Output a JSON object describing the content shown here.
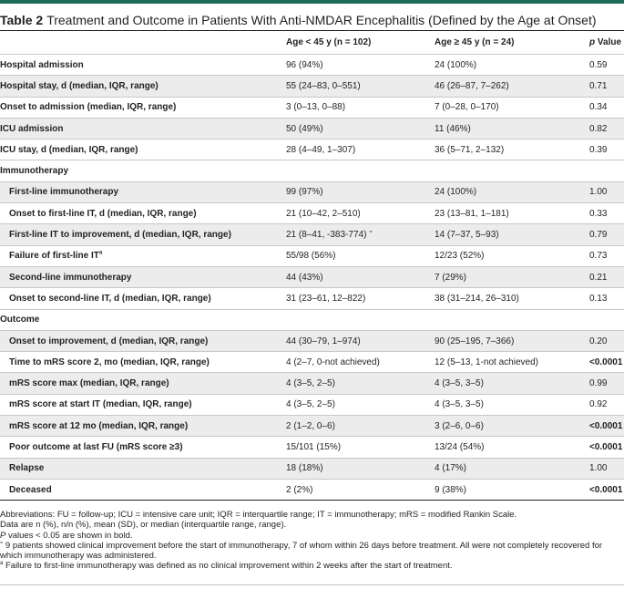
{
  "title": {
    "label": "Table 2",
    "text": "Treatment and Outcome in Patients With Anti-NMDAR Encephalitis (Defined by the Age at Onset)"
  },
  "header": {
    "col1": "",
    "col2": "Age < 45 y (n = 102)",
    "col3": "Age ≥ 45 y (n = 24)",
    "col4_italic": "p",
    "col4_rest": " Value"
  },
  "rows": [
    {
      "label": "Hospital admission",
      "a": "96 (94%)",
      "b": "24 (100%)",
      "p": "0.59"
    },
    {
      "label": "Hospital stay, d (median, IQR, range)",
      "a": "55 (24–83, 0–551)",
      "b": "46 (26–87, 7–262)",
      "p": "0.71"
    },
    {
      "label": "Onset to admission (median, IQR, range)",
      "a": "3 (0–13, 0–88)",
      "b": "7 (0–28, 0–170)",
      "p": "0.34"
    },
    {
      "label": "ICU admission",
      "a": "50 (49%)",
      "b": "11 (46%)",
      "p": "0.82"
    },
    {
      "label": "ICU stay, d (median, IQR, range)",
      "a": "28 (4–49, 1–307)",
      "b": "36 (5–71, 2–132)",
      "p": "0.39"
    },
    {
      "label": "Immunotherapy",
      "a": "",
      "b": "",
      "p": ""
    },
    {
      "label": "First-line immunotherapy",
      "a": "99 (97%)",
      "b": "24 (100%)",
      "p": "1.00"
    },
    {
      "label": "Onset to first-line IT, d (median, IQR, range)",
      "a": "21 (10–42, 2–510)",
      "b": "23 (13–81, 1–181)",
      "p": "0.33"
    },
    {
      "label": "First-line IT to improvement, d (median, IQR, range)",
      "a": "21 (8–41, -383-774)",
      "a_sup": "≈",
      "b": "14 (7–37, 5–93)",
      "p": "0.79"
    },
    {
      "label": "Failure of first-line IT",
      "label_sup": "a",
      "a": "55/98 (56%)",
      "b": "12/23 (52%)",
      "p": "0.73"
    },
    {
      "label": "Second-line immunotherapy",
      "a": "44 (43%)",
      "b": "7 (29%)",
      "p": "0.21"
    },
    {
      "label": "Onset to second-line IT, d (median, IQR, range)",
      "a": "31 (23–61, 12–822)",
      "b": "38 (31–214, 26–310)",
      "p": "0.13"
    },
    {
      "label": "Outcome",
      "a": "",
      "b": "",
      "p": ""
    },
    {
      "label": "Onset to improvement, d (median, IQR, range)",
      "a": "44 (30–79, 1–974)",
      "b": "90 (25–195, 7–366)",
      "p": "0.20"
    },
    {
      "label": "Time to mRS score 2, mo (median, IQR, range)",
      "a": "4 (2–7, 0-not achieved)",
      "b": "12 (5–13, 1-not achieved)",
      "p": "<0.0001"
    },
    {
      "label": "mRS score max (median, IQR, range)",
      "a": "4 (3–5, 2–5)",
      "b": "4 (3–5, 3–5)",
      "p": "0.99"
    },
    {
      "label": "mRS score at start IT (median, IQR, range)",
      "a": "4 (3–5, 2–5)",
      "b": "4 (3–5, 3–5)",
      "p": "0.92"
    },
    {
      "label": "mRS score at 12 mo (median, IQR, range)",
      "a": "2 (1–2, 0–6)",
      "b": "3 (2–6, 0–6)",
      "p": "<0.0001"
    },
    {
      "label": "Poor outcome at last FU (mRS score ≥3)",
      "a": "15/101 (15%)",
      "b": "13/24 (54%)",
      "p": "<0.0001"
    },
    {
      "label": "Relapse",
      "a": "18 (18%)",
      "b": "4 (17%)",
      "p": "1.00"
    },
    {
      "label": "Deceased",
      "a": "2 (2%)",
      "b": "9 (38%)",
      "p": "<0.0001"
    }
  ],
  "notes": {
    "abbrev": "Abbreviations: FU = follow-up; ICU = intensive care unit; IQR = interquartile range; IT = immunotherapy; mRS = modified Rankin Scale.",
    "data": "Data are n (%), n/n (%), mean (SD), or median (interquartile range, range).",
    "p_italic": "P",
    "p_rest": " values < 0.05 are shown in bold.",
    "sym1": "≈",
    "fn1": " 9 patients showed clinical improvement before the start of immunotherapy, 7 of whom within 26 days before treatment. All were not completely recovered for which immunotherapy was administered.",
    "sym2": "a",
    "fn2": " Failure to first-line immunotherapy was defined as no clinical improvement within 2 weeks after the start of treatment."
  },
  "colors": {
    "topbar": "#1a6b5a",
    "alt_row": "#ececec",
    "text": "#231f20"
  }
}
